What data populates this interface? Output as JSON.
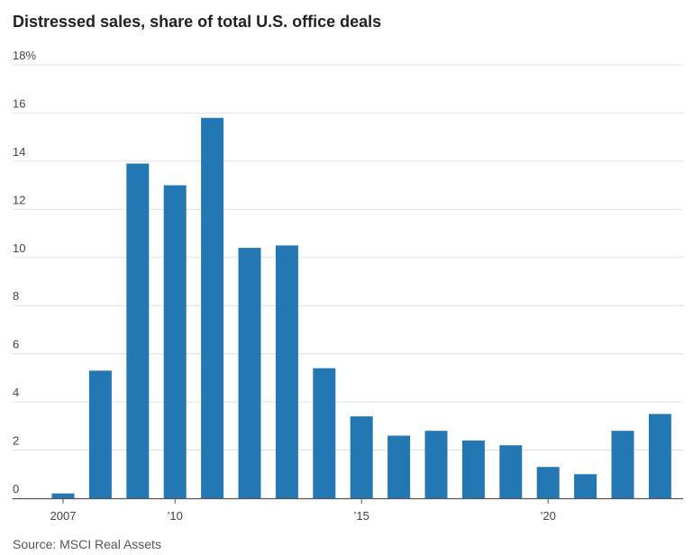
{
  "chart_data": {
    "type": "bar",
    "title": "Distressed sales, share of total U.S. office deals",
    "years": [
      2007,
      2008,
      2009,
      2010,
      2011,
      2012,
      2013,
      2014,
      2015,
      2016,
      2017,
      2018,
      2019,
      2020,
      2021,
      2022,
      2023
    ],
    "values": [
      0.2,
      5.3,
      13.9,
      13.0,
      15.8,
      10.4,
      10.5,
      5.4,
      3.4,
      2.6,
      2.8,
      2.4,
      2.2,
      1.3,
      1.0,
      2.8,
      3.5
    ],
    "ylim": [
      0,
      18
    ],
    "yticks": [
      {
        "value": 0,
        "label": "0"
      },
      {
        "value": 2,
        "label": "2"
      },
      {
        "value": 4,
        "label": "4"
      },
      {
        "value": 6,
        "label": "6"
      },
      {
        "value": 8,
        "label": "8"
      },
      {
        "value": 10,
        "label": "10"
      },
      {
        "value": 12,
        "label": "12"
      },
      {
        "value": 14,
        "label": "14"
      },
      {
        "value": 16,
        "label": "16"
      },
      {
        "value": 18,
        "label": "18%"
      }
    ],
    "xticks": [
      {
        "year": 2007,
        "label": "2007"
      },
      {
        "year": 2010,
        "label": "’10"
      },
      {
        "year": 2015,
        "label": "’15"
      },
      {
        "year": 2020,
        "label": "’20"
      }
    ],
    "grid": true,
    "bar_color": "#2378b4"
  },
  "source": "Source: MSCI Real Assets"
}
